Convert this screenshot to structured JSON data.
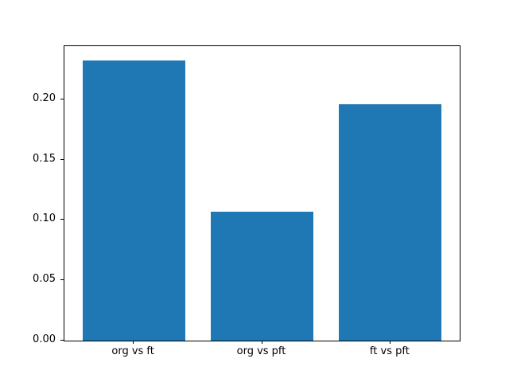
{
  "colors": {
    "bar": "#1f77b4",
    "background": "#ffffff",
    "axis": "#000000",
    "text": "#000000"
  },
  "chart_data": {
    "type": "bar",
    "categories": [
      "org vs ft",
      "org vs pft",
      "ft vs pft"
    ],
    "values": [
      0.232,
      0.107,
      0.196
    ],
    "title": "",
    "xlabel": "",
    "ylabel": "",
    "xlim": [
      -0.54,
      2.54
    ],
    "ylim": [
      0,
      0.244
    ],
    "bar_width": 0.8,
    "yticks": [
      0,
      0.05,
      0.1,
      0.15,
      0.2
    ],
    "ytick_labels": [
      "0.00",
      "0.05",
      "0.10",
      "0.15",
      "0.20"
    ],
    "grid": false,
    "legend": "none"
  }
}
